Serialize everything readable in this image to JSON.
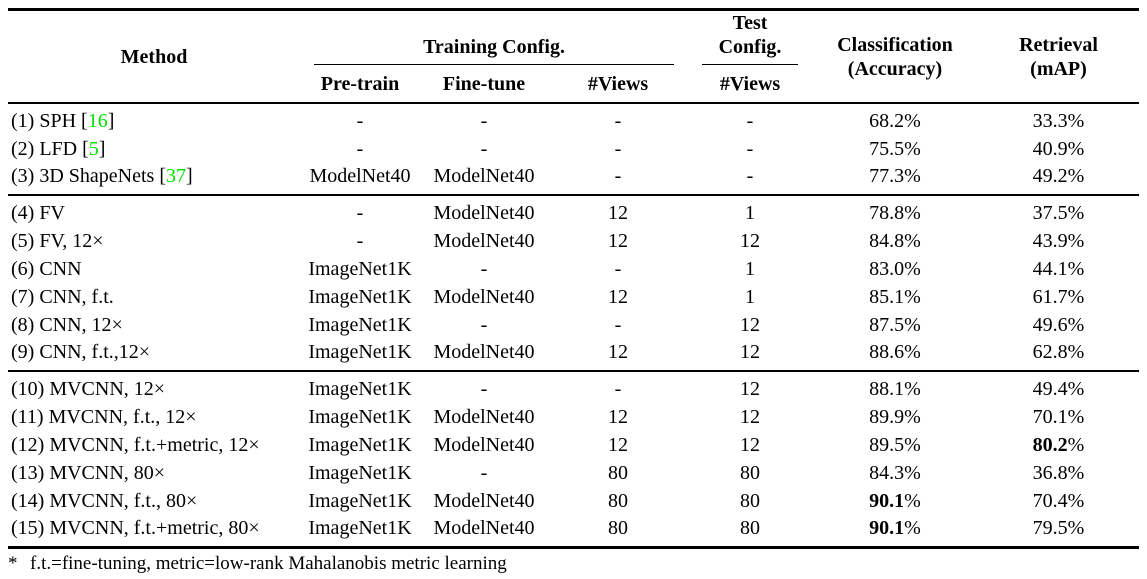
{
  "table": {
    "citation_color": "#00e000",
    "header": {
      "method": "Method",
      "training_config": "Training Config.",
      "test_config": "Test Config.",
      "pretrain": "Pre-train",
      "finetune": "Fine-tune",
      "views_train": "#Views",
      "views_test": "#Views",
      "classification_line1": "Classification",
      "classification_line2": "(Accuracy)",
      "retrieval_line1": "Retrieval",
      "retrieval_line2": "(mAP)"
    },
    "groups": [
      {
        "rows": [
          {
            "method": "(1) SPH",
            "cite": "16",
            "pretrain": "-",
            "finetune": "-",
            "train_views": "-",
            "test_views": "-",
            "accuracy": "68.2%",
            "accuracy_bold": false,
            "map": "33.3%",
            "map_bold": false
          },
          {
            "method": "(2) LFD",
            "cite": "5",
            "pretrain": "-",
            "finetune": "-",
            "train_views": "-",
            "test_views": "-",
            "accuracy": "75.5%",
            "accuracy_bold": false,
            "map": "40.9%",
            "map_bold": false
          },
          {
            "method": "(3) 3D ShapeNets",
            "cite": "37",
            "pretrain": "ModelNet40",
            "finetune": "ModelNet40",
            "train_views": "-",
            "test_views": "-",
            "accuracy": "77.3%",
            "accuracy_bold": false,
            "map": "49.2%",
            "map_bold": false
          }
        ]
      },
      {
        "rows": [
          {
            "method": "(4) FV",
            "cite": null,
            "pretrain": "-",
            "finetune": "ModelNet40",
            "train_views": "12",
            "test_views": "1",
            "accuracy": "78.8%",
            "accuracy_bold": false,
            "map": "37.5%",
            "map_bold": false
          },
          {
            "method": "(5) FV, 12×",
            "cite": null,
            "pretrain": "-",
            "finetune": "ModelNet40",
            "train_views": "12",
            "test_views": "12",
            "accuracy": "84.8%",
            "accuracy_bold": false,
            "map": "43.9%",
            "map_bold": false
          },
          {
            "method": "(6) CNN",
            "cite": null,
            "pretrain": "ImageNet1K",
            "finetune": "-",
            "train_views": "-",
            "test_views": "1",
            "accuracy": "83.0%",
            "accuracy_bold": false,
            "map": "44.1%",
            "map_bold": false
          },
          {
            "method": "(7) CNN, f.t.",
            "cite": null,
            "pretrain": "ImageNet1K",
            "finetune": "ModelNet40",
            "train_views": "12",
            "test_views": "1",
            "accuracy": "85.1%",
            "accuracy_bold": false,
            "map": "61.7%",
            "map_bold": false
          },
          {
            "method": "(8) CNN, 12×",
            "cite": null,
            "pretrain": "ImageNet1K",
            "finetune": "-",
            "train_views": "-",
            "test_views": "12",
            "accuracy": "87.5%",
            "accuracy_bold": false,
            "map": "49.6%",
            "map_bold": false
          },
          {
            "method": "(9) CNN, f.t.,12×",
            "cite": null,
            "pretrain": "ImageNet1K",
            "finetune": "ModelNet40",
            "train_views": "12",
            "test_views": "12",
            "accuracy": "88.6%",
            "accuracy_bold": false,
            "map": "62.8%",
            "map_bold": false
          }
        ]
      },
      {
        "rows": [
          {
            "method": "(10) MVCNN, 12×",
            "cite": null,
            "pretrain": "ImageNet1K",
            "finetune": "-",
            "train_views": "-",
            "test_views": "12",
            "accuracy": "88.1%",
            "accuracy_bold": false,
            "map": "49.4%",
            "map_bold": false
          },
          {
            "method": "(11) MVCNN, f.t., 12×",
            "cite": null,
            "pretrain": "ImageNet1K",
            "finetune": "ModelNet40",
            "train_views": "12",
            "test_views": "12",
            "accuracy": "89.9%",
            "accuracy_bold": false,
            "map": "70.1%",
            "map_bold": false
          },
          {
            "method": "(12) MVCNN, f.t.+metric, 12×",
            "cite": null,
            "pretrain": "ImageNet1K",
            "finetune": "ModelNet40",
            "train_views": "12",
            "test_views": "12",
            "accuracy": "89.5%",
            "accuracy_bold": false,
            "map": "80.2%",
            "map_bold": true
          },
          {
            "method": "(13) MVCNN, 80×",
            "cite": null,
            "pretrain": "ImageNet1K",
            "finetune": "-",
            "train_views": "80",
            "test_views": "80",
            "accuracy": "84.3%",
            "accuracy_bold": false,
            "map": "36.8%",
            "map_bold": false
          },
          {
            "method": "(14) MVCNN, f.t., 80×",
            "cite": null,
            "pretrain": "ImageNet1K",
            "finetune": "ModelNet40",
            "train_views": "80",
            "test_views": "80",
            "accuracy": "90.1%",
            "accuracy_bold": true,
            "map": "70.4%",
            "map_bold": false
          },
          {
            "method": "(15) MVCNN, f.t.+metric, 80×",
            "cite": null,
            "pretrain": "ImageNet1K",
            "finetune": "ModelNet40",
            "train_views": "80",
            "test_views": "80",
            "accuracy": "90.1%",
            "accuracy_bold": true,
            "map": "79.5%",
            "map_bold": false
          }
        ]
      }
    ],
    "footnote": {
      "marker": "*",
      "text": "f.t.=fine-tuning, metric=low-rank Mahalanobis metric learning"
    }
  }
}
